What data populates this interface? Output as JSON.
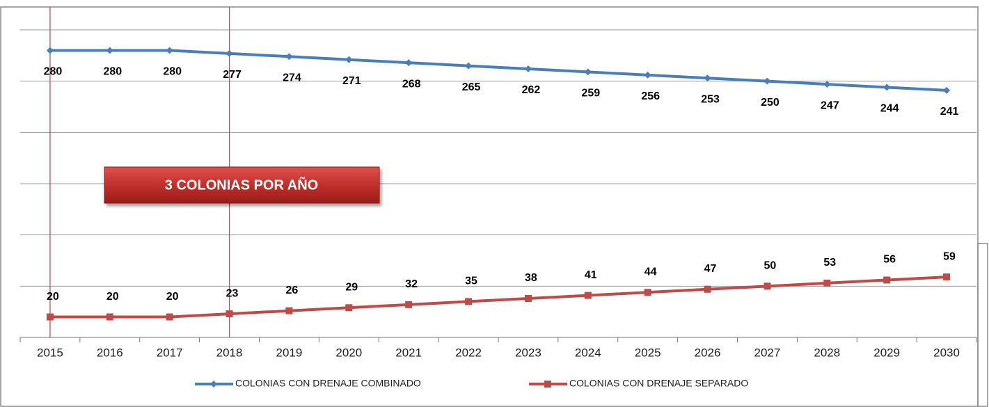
{
  "chart_data": {
    "type": "line",
    "categories": [
      "2015",
      "2016",
      "2017",
      "2018",
      "2019",
      "2020",
      "2021",
      "2022",
      "2023",
      "2024",
      "2025",
      "2026",
      "2027",
      "2028",
      "2029",
      "2030"
    ],
    "series": [
      {
        "name": "COLONIAS CON DRENAJE COMBINADO",
        "color": "#4a7ebb",
        "values": [
          280,
          280,
          280,
          277,
          274,
          271,
          268,
          265,
          262,
          259,
          256,
          253,
          250,
          247,
          244,
          241
        ]
      },
      {
        "name": "COLONIAS CON DRENAJE SEPARADO",
        "color": "#be4b48",
        "values": [
          20,
          20,
          20,
          23,
          26,
          29,
          32,
          35,
          38,
          41,
          44,
          47,
          50,
          53,
          56,
          59
        ]
      }
    ],
    "ylim": [
      0,
      300
    ],
    "yticks": [
      0,
      50,
      100,
      150,
      200,
      250,
      300
    ],
    "grid": true,
    "annotation": "3 COLONIAS POR AÑO"
  }
}
